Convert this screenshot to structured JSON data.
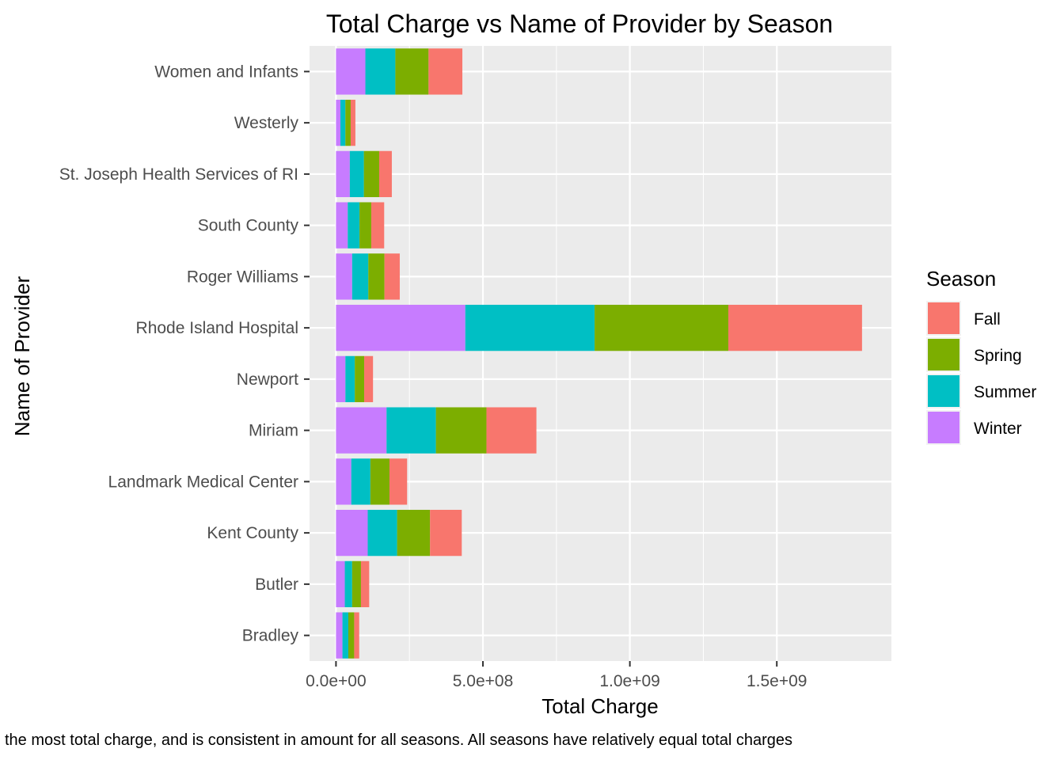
{
  "chart_data": {
    "type": "bar",
    "orientation": "horizontal",
    "stacked": true,
    "title": "Total Charge vs Name of Provider by Season",
    "xlabel": "Total Charge",
    "ylabel": "Name of Provider",
    "xlim": [
      -90000000,
      1890000000
    ],
    "x_ticks": [
      0,
      500000000,
      1000000000,
      1500000000
    ],
    "x_tick_labels": [
      "0.0e+00",
      "5.0e+08",
      "1.0e+09",
      "1.5e+09"
    ],
    "grid": true,
    "legend_title": "Season",
    "legend_position": "right",
    "categories": [
      "Bradley",
      "Butler",
      "Kent County",
      "Landmark Medical Center",
      "Miriam",
      "Newport",
      "Rhode Island Hospital",
      "Roger Williams",
      "South County",
      "St. Joseph Health Services of RI",
      "Westerly",
      "Women and Infants"
    ],
    "series": [
      {
        "name": "Winter",
        "color": "#C77CFF",
        "values": [
          22000000,
          30000000,
          108000000,
          52000000,
          172000000,
          32000000,
          440000000,
          55000000,
          40000000,
          47000000,
          15000000,
          100000000
        ]
      },
      {
        "name": "Summer",
        "color": "#00BFC4",
        "values": [
          20000000,
          25000000,
          100000000,
          65000000,
          168000000,
          32000000,
          440000000,
          55000000,
          40000000,
          48000000,
          17000000,
          102000000
        ]
      },
      {
        "name": "Spring",
        "color": "#7CAE00",
        "values": [
          20000000,
          30000000,
          112000000,
          65000000,
          172000000,
          32000000,
          455000000,
          55000000,
          40000000,
          52000000,
          18000000,
          113000000
        ]
      },
      {
        "name": "Fall",
        "color": "#F8766D",
        "values": [
          17000000,
          28000000,
          108000000,
          60000000,
          170000000,
          30000000,
          455000000,
          52000000,
          44000000,
          43000000,
          16000000,
          115000000
        ]
      }
    ],
    "legend_order": [
      "Fall",
      "Spring",
      "Summer",
      "Winter"
    ]
  },
  "caption": "the most total charge, and is consistent in amount for all seasons. All seasons have relatively equal total charges"
}
